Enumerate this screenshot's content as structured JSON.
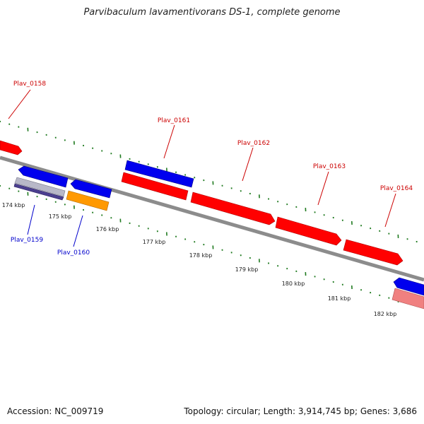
{
  "header": {
    "title": "Parvibaculum lavamentivorans DS-1, complete genome"
  },
  "footer": {
    "accession": "Accession: NC_009719",
    "summary": "Topology: circular; Length: 3,914,745 bp; Genes: 3,686"
  },
  "colors": {
    "forward_gene": "#ff0000",
    "reverse_gene": "#0000ee",
    "orange_gene": "#ff9900",
    "pink_gene": "#f08080",
    "gray_gene": "#b8b8c8",
    "purple_gene": "#4b3f8f",
    "backbone": "#8c8c8c",
    "ticks": "#1f7a1f",
    "forward_label": "#cc0000",
    "reverse_label": "#0000cc"
  },
  "scale_labels": [
    "174 kbp",
    "175 kbp",
    "176 kbp",
    "177 kbp",
    "178 kbp",
    "179 kbp",
    "180 kbp",
    "181 kbp",
    "182 kbp"
  ],
  "gene_labels": [
    "Plav_0158",
    "Plav_0159",
    "Plav_0160",
    "Plav_0161",
    "Plav_0162",
    "Plav_0163",
    "Plav_0164"
  ]
}
